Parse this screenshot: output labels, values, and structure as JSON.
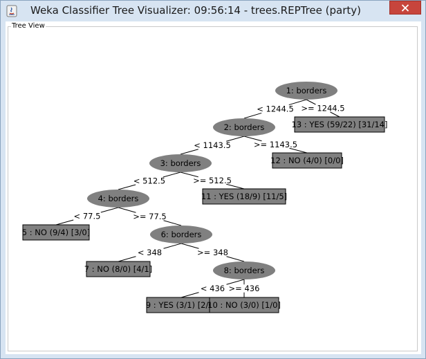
{
  "window": {
    "title": "Weka Classifier Tree Visualizer: 09:56:14 - trees.REPTree (party)",
    "close_icon": "close-icon",
    "app_icon": "java-icon"
  },
  "panel": {
    "label": "Tree View"
  },
  "tree": {
    "nodes": [
      {
        "id": "n1",
        "label": "1: borders",
        "type": "split"
      },
      {
        "id": "n2",
        "label": "2: borders",
        "type": "split"
      },
      {
        "id": "n3",
        "label": "3: borders",
        "type": "split"
      },
      {
        "id": "n4",
        "label": "4: borders",
        "type": "split"
      },
      {
        "id": "n6",
        "label": "6: borders",
        "type": "split"
      },
      {
        "id": "n8",
        "label": "8: borders",
        "type": "split"
      },
      {
        "id": "n13",
        "label": "13 : YES (59/22) [31/14]",
        "type": "leaf"
      },
      {
        "id": "n12",
        "label": "12 : NO (4/0) [0/0]",
        "type": "leaf"
      },
      {
        "id": "n11",
        "label": "11 : YES (18/9) [11/5]",
        "type": "leaf"
      },
      {
        "id": "n5",
        "label": "5 : NO (9/4) [3/0]",
        "type": "leaf"
      },
      {
        "id": "n7",
        "label": "7 : NO (8/0) [4/1]",
        "type": "leaf"
      },
      {
        "id": "n9",
        "label": "9 : YES (3/1) [2/0]",
        "type": "leaf"
      },
      {
        "id": "n10",
        "label": "10 : NO (3/0) [1/0]",
        "type": "leaf"
      }
    ],
    "edges": [
      {
        "from": "n1",
        "to": "n2",
        "label": "< 1244.5"
      },
      {
        "from": "n1",
        "to": "n13",
        "label": ">= 1244.5"
      },
      {
        "from": "n2",
        "to": "n3",
        "label": "< 1143.5"
      },
      {
        "from": "n2",
        "to": "n12",
        "label": ">= 1143.5"
      },
      {
        "from": "n3",
        "to": "n4",
        "label": "< 512.5"
      },
      {
        "from": "n3",
        "to": "n11",
        "label": ">= 512.5"
      },
      {
        "from": "n4",
        "to": "n5",
        "label": "< 77.5"
      },
      {
        "from": "n4",
        "to": "n6",
        "label": ">= 77.5"
      },
      {
        "from": "n6",
        "to": "n7",
        "label": "< 348"
      },
      {
        "from": "n6",
        "to": "n8",
        "label": ">= 348"
      },
      {
        "from": "n8",
        "to": "n9",
        "label": "< 436"
      },
      {
        "from": "n8",
        "to": "n10",
        "label": ">= 436"
      }
    ]
  },
  "colors": {
    "node_fill": "#808080",
    "node_stroke": "#000000",
    "edge": "#000000"
  }
}
